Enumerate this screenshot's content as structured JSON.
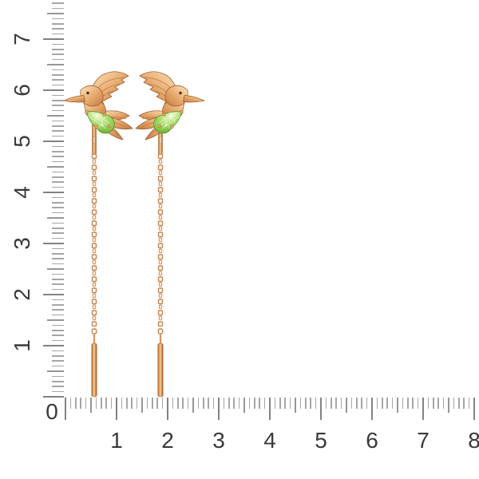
{
  "rulers": {
    "corner_label": "0",
    "vertical_labels": [
      "1",
      "2",
      "3",
      "4",
      "5",
      "6",
      "7"
    ],
    "horizontal_labels": [
      "1",
      "2",
      "3",
      "4",
      "5",
      "6",
      "7",
      "8"
    ]
  },
  "product": {
    "left_item": "gold hummingbird threader earring with green gem",
    "right_item": "gold hummingbird threader earring with green gem"
  },
  "colors": {
    "bg": "#ffffff",
    "tick-minor": "#a6a6a6",
    "tick-medium": "#969696",
    "tick-major": "#828282",
    "label-text": "#3a3a3a",
    "gold-light": "#fae6c6",
    "gold-mid": "#e8a96f",
    "gold-dark": "#c0793f",
    "gold-outline": "#a05e2d",
    "gem-light": "#eefad0",
    "gem-mid": "#8cc84e",
    "gem-dark": "#5d9a2d"
  }
}
